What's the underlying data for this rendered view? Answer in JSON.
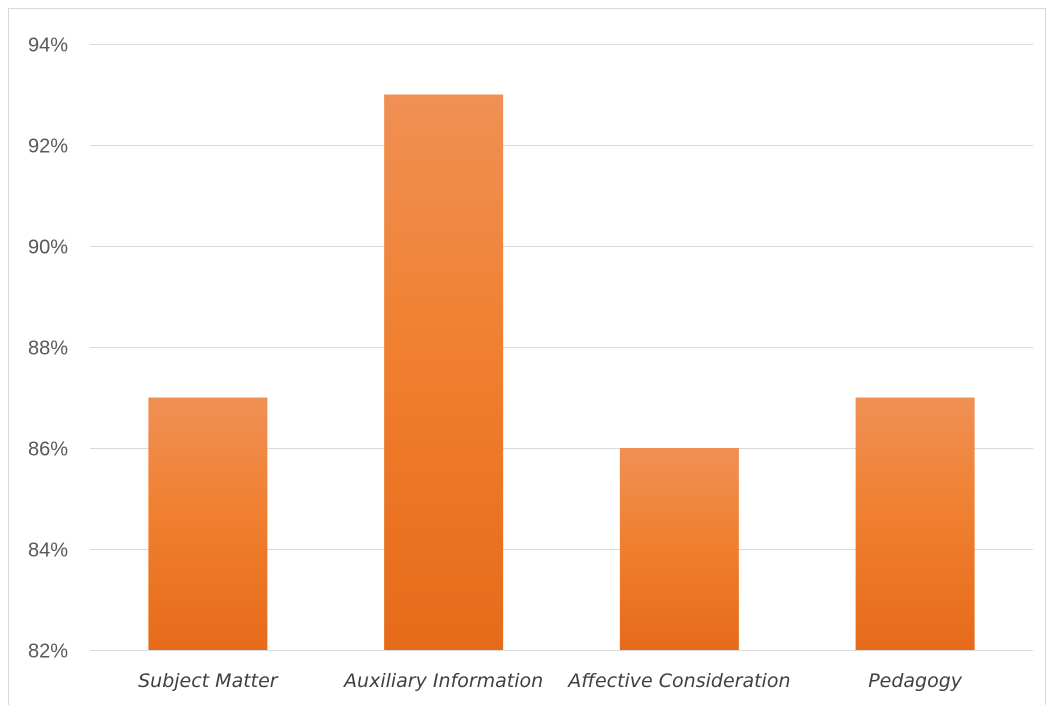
{
  "chart_data": {
    "type": "bar",
    "title": "",
    "xlabel": "",
    "ylabel": "",
    "categories": [
      "Subject Matter",
      "Auxiliary Information",
      "Affective Consideration",
      "Pedagogy"
    ],
    "values": [
      87,
      93,
      86,
      87
    ],
    "value_format": "percent",
    "ylim": [
      82,
      94
    ],
    "yticks": [
      82,
      84,
      86,
      88,
      90,
      92,
      94
    ],
    "ytick_labels": [
      "82%",
      "84%",
      "86%",
      "88%",
      "90%",
      "92%",
      "94%"
    ],
    "grid": true,
    "legend": "none",
    "bar_color_top": "#f09055",
    "bar_color_mid": "#f08030",
    "bar_color_bottom": "#e56b1a",
    "grid_color": "#d9d9d9"
  }
}
